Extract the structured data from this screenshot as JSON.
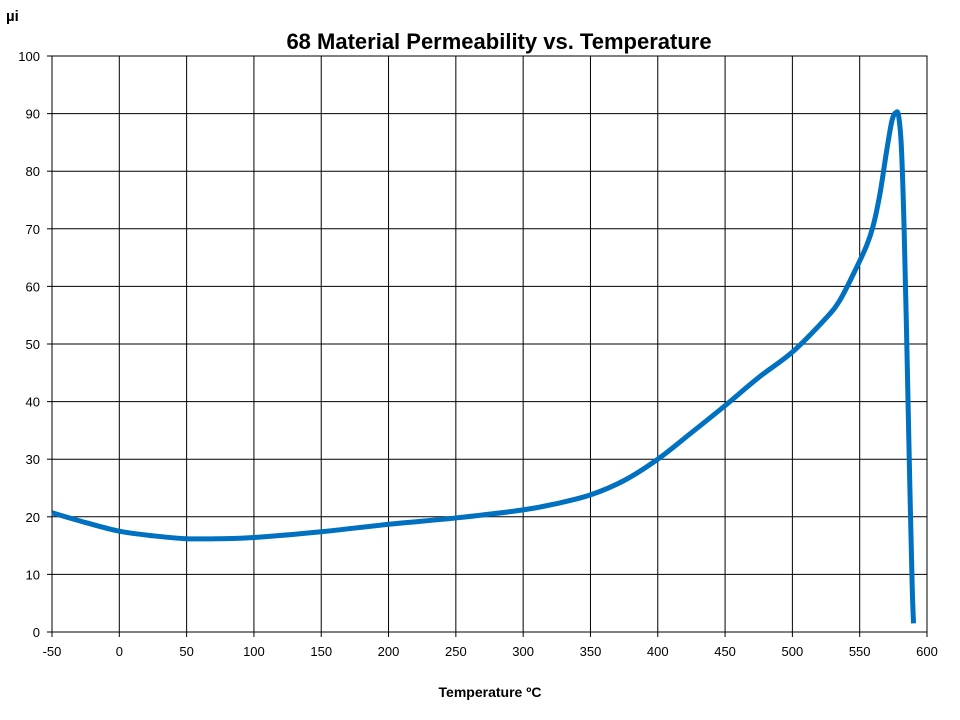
{
  "chart_data": {
    "type": "line",
    "title": "68 Material Permeability vs. Temperature",
    "xlabel": "Temperature ºC",
    "ylabel": "µi",
    "xlim": [
      -50,
      600
    ],
    "ylim": [
      0,
      100
    ],
    "x_ticks": [
      "-50",
      "0",
      "50",
      "100",
      "150",
      "200",
      "250",
      "300",
      "350",
      "400",
      "450",
      "500",
      "550",
      "600"
    ],
    "y_ticks": [
      "0",
      "10",
      "20",
      "30",
      "40",
      "50",
      "60",
      "70",
      "80",
      "90",
      "100"
    ],
    "grid": true,
    "legend": "none",
    "series_color": "#0070C0",
    "series": [
      {
        "x": [
          -50,
          -25,
          0,
          25,
          50,
          75,
          100,
          150,
          200,
          250,
          300,
          325,
          350,
          375,
          400,
          425,
          450,
          475,
          500,
          525,
          535,
          545,
          555,
          560,
          565,
          570,
          574,
          577,
          579,
          581,
          583,
          585,
          587,
          589,
          590
        ],
        "y": [
          20.7,
          19.0,
          17.5,
          16.7,
          16.2,
          16.2,
          16.4,
          17.4,
          18.7,
          19.8,
          21.2,
          22.3,
          23.8,
          26.3,
          30.0,
          34.6,
          39.3,
          44.2,
          48.6,
          54.5,
          57.5,
          62.0,
          67.0,
          70.5,
          76.0,
          83.5,
          88.8,
          90.2,
          89.5,
          84.0,
          70.0,
          50.0,
          28.0,
          8.0,
          1.5
        ]
      }
    ]
  }
}
